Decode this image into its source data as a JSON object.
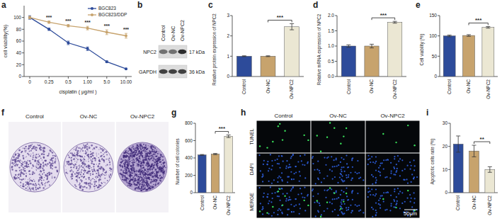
{
  "chart_data": [
    {
      "type": "line",
      "title": "a",
      "x_label": "cisplatin ( μg/ml )",
      "y_label": "cell viability(%)",
      "categories": [
        "0",
        "0.25",
        "0.5",
        "1.00",
        "5.0",
        "10.00"
      ],
      "series": [
        {
          "name": "BGC823",
          "color": "#2d4b9a",
          "marker": "circle",
          "values": [
            100,
            80,
            57,
            47,
            25,
            13
          ],
          "error": [
            3,
            2,
            3,
            3,
            1.5,
            1
          ]
        },
        {
          "name": "BGC823/DDP",
          "color": "#c7a36d",
          "marker": "circle",
          "values": [
            100,
            92,
            86,
            82,
            75,
            69
          ],
          "error": [
            2,
            2,
            2,
            3,
            4,
            4
          ]
        }
      ],
      "ylim": [
        0,
        120
      ],
      "yticks": [
        0,
        20,
        40,
        60,
        80,
        100
      ],
      "annotations": [
        null,
        "***",
        "***",
        "***",
        "***",
        "***"
      ],
      "legend": "upper right"
    },
    {
      "type": "bar",
      "title": "c",
      "y_label": "Relative protein expression of  NPC2",
      "categories": [
        "Control",
        "Ov-NC",
        "Ov-NPC2"
      ],
      "values": [
        1.0,
        1.0,
        2.45
      ],
      "error": [
        0.02,
        0.02,
        0.15
      ],
      "colors": [
        "#2d4b9a",
        "#c7a36d",
        "#ebe7d3"
      ],
      "ylim": [
        0,
        3
      ],
      "yticks": [
        0,
        1,
        2,
        3
      ],
      "annotations": [
        "***"
      ]
    },
    {
      "type": "bar",
      "title": "d",
      "y_label": "Relative mRNA expression of  NPC2",
      "categories": [
        "Control",
        "Ov-NC",
        "Ov-NPC2"
      ],
      "values": [
        1.0,
        1.0,
        1.78
      ],
      "error": [
        0.04,
        0.06,
        0.03
      ],
      "colors": [
        "#2d4b9a",
        "#c7a36d",
        "#ebe7d3"
      ],
      "ylim": [
        0,
        2
      ],
      "yticks": [
        {
          "value": 0,
          "label": "0.0"
        },
        {
          "value": 0.5,
          "label": "0.5"
        },
        {
          "value": 1,
          "label": "1.0"
        },
        {
          "value": 1.5,
          "label": "1.5"
        },
        {
          "value": 2,
          "label": "2.0"
        }
      ],
      "annotations": [
        "***"
      ]
    },
    {
      "type": "bar",
      "title": "e",
      "y_label": "Cell viability (%)",
      "categories": [
        "Control",
        "Ov-NC",
        "Ov-NPC2"
      ],
      "values": [
        100,
        101,
        121
      ],
      "error": [
        2,
        2,
        2
      ],
      "colors": [
        "#2d4b9a",
        "#c7a36d",
        "#ebe7d3"
      ],
      "ylim": [
        0,
        150
      ],
      "yticks": [
        0,
        50,
        100,
        150
      ],
      "annotations": [
        "***"
      ]
    },
    {
      "type": "bar",
      "title": "g",
      "y_label": "Number of cell colonies",
      "categories": [
        "Control",
        "Ov-NC",
        "Ov-NPC2"
      ],
      "values": [
        435,
        445,
        650
      ],
      "error": [
        5,
        7,
        15
      ],
      "colors": [
        "#2d4b9a",
        "#c7a36d",
        "#ebe7d3"
      ],
      "ylim": [
        0,
        800
      ],
      "yticks": [
        0,
        200,
        400,
        600,
        800
      ],
      "annotations": [
        "***"
      ]
    },
    {
      "type": "bar",
      "title": "i",
      "y_label": "Apoptotic cells rate (%)",
      "categories": [
        "Control",
        "Ov-NC",
        "Ov-NPC2"
      ],
      "values": [
        21,
        18,
        10
      ],
      "error": [
        3.5,
        2.5,
        1.2
      ],
      "colors": [
        "#2d4b9a",
        "#c7a36d",
        "#ebe7d3"
      ],
      "ylim": [
        0,
        30
      ],
      "yticks": [
        0,
        10,
        20,
        30
      ],
      "annotations": [
        "**"
      ]
    }
  ],
  "blot": {
    "title": "b",
    "lanes": [
      "Control",
      "Ov-NC",
      "Ov-NPC2"
    ],
    "bands": [
      {
        "name": "NPC2",
        "size": "17 kDa"
      },
      {
        "name": "GAPDH",
        "size": "36 kDa"
      }
    ]
  },
  "colonies": {
    "title": "f",
    "labels": [
      "Control",
      "Ov-NC",
      "Ov-NPC2"
    ]
  },
  "tunel": {
    "title": "h",
    "columns": [
      "Control",
      "Ov-NC",
      "Ov-NPC2"
    ],
    "rows": [
      "TUNEL",
      "DAPI",
      "MERGE"
    ],
    "scale_bar": "50μm"
  }
}
